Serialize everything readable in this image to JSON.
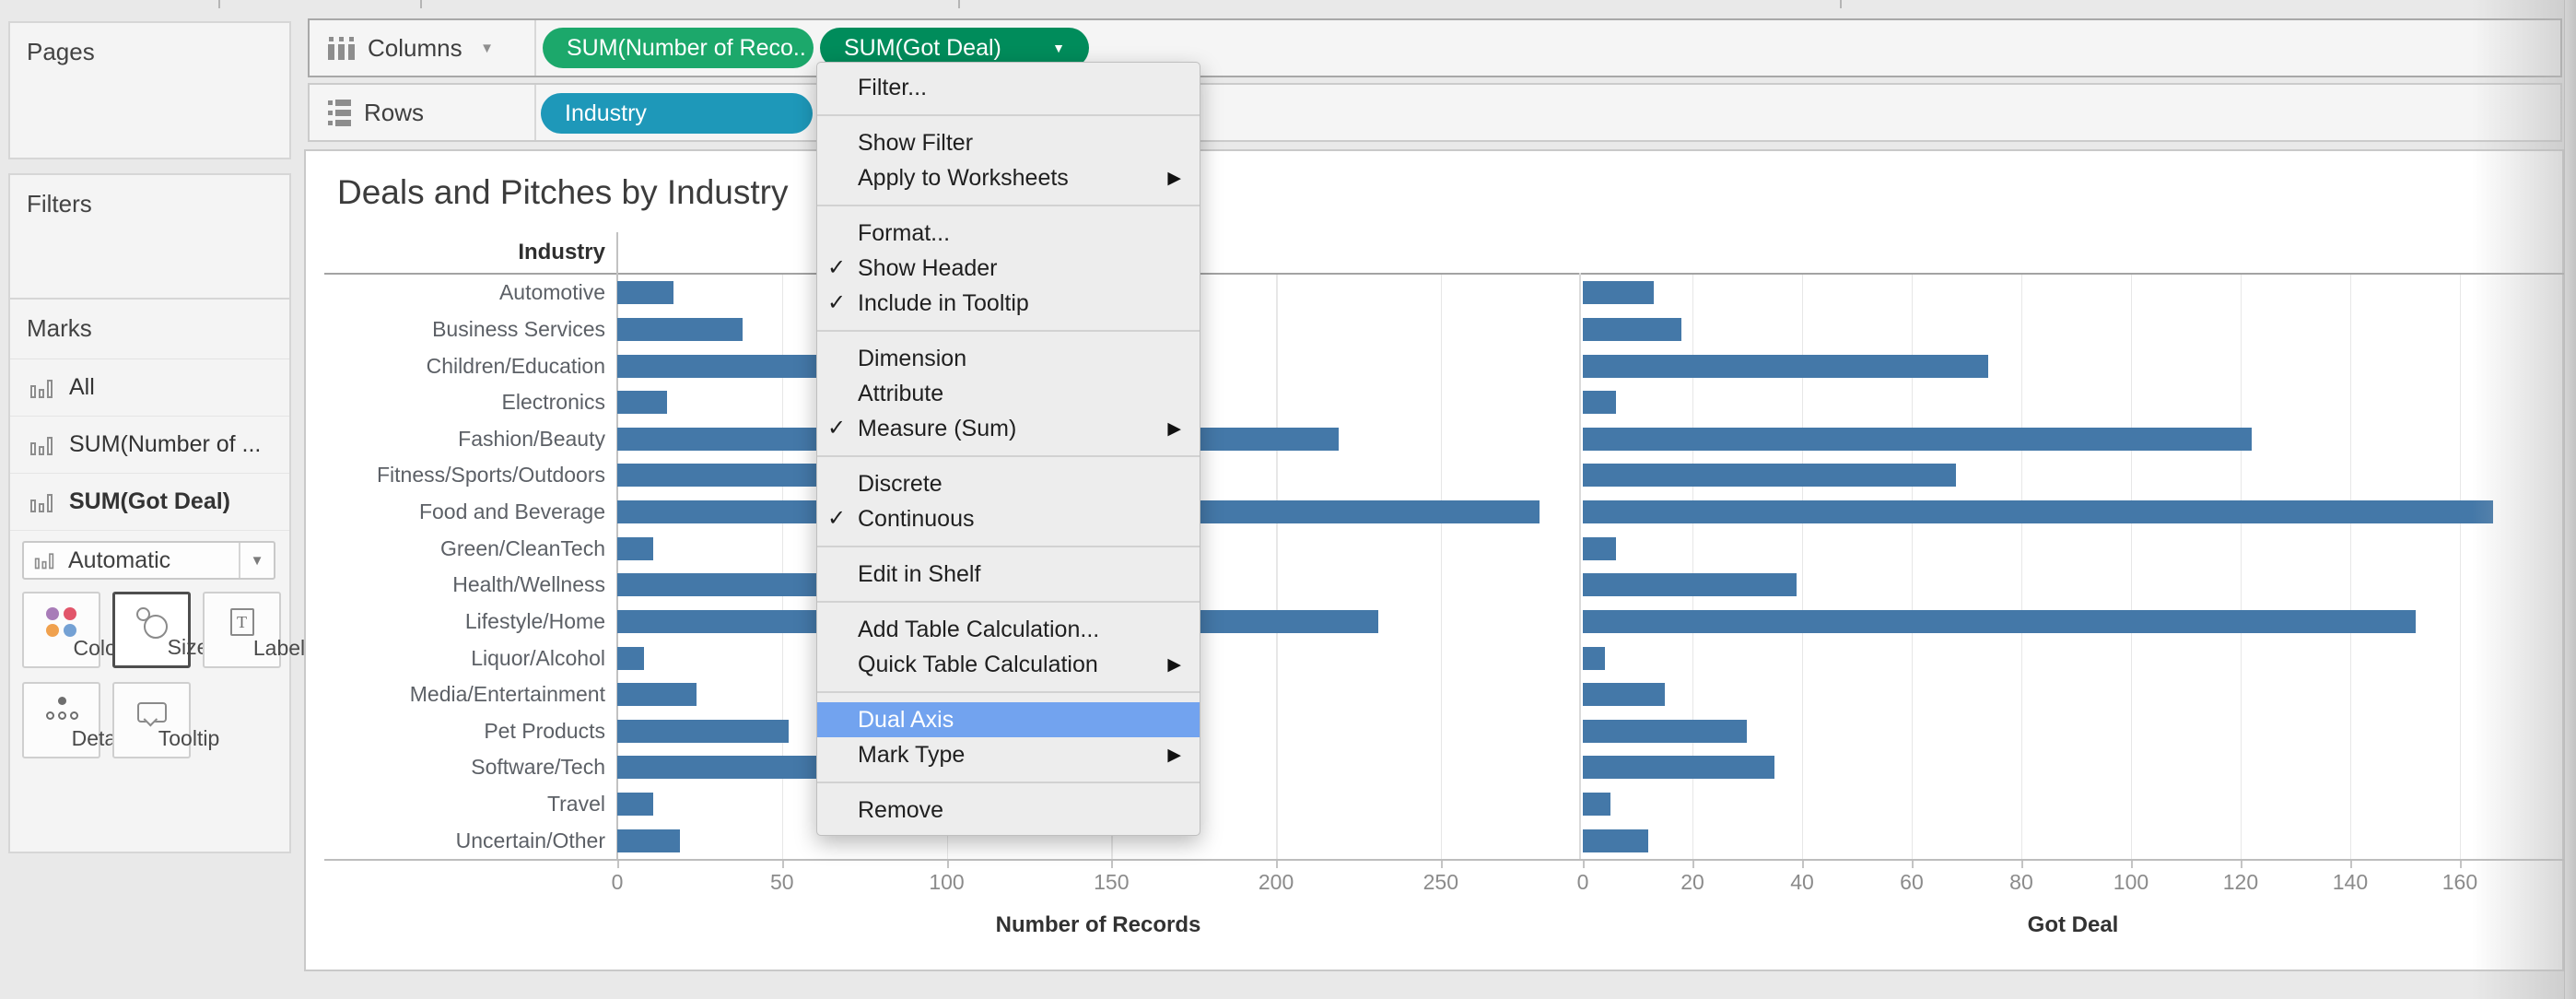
{
  "shelves": {
    "columns": {
      "label": "Columns",
      "pills": [
        {
          "label": "SUM(Number of Reco..",
          "color": "#1CA86B"
        },
        {
          "label": "SUM(Got Deal)",
          "color": "#008C5B",
          "caret": "▼"
        }
      ]
    },
    "rows": {
      "label": "Rows",
      "pills": [
        {
          "label": "Industry",
          "color": "#1E98B9"
        }
      ]
    }
  },
  "sidebar": {
    "pages_label": "Pages",
    "filters_label": "Filters",
    "marks": {
      "title": "Marks",
      "items": [
        {
          "label": "All",
          "bold": false
        },
        {
          "label": "SUM(Number of ...",
          "bold": false
        },
        {
          "label": "SUM(Got Deal)",
          "bold": true
        }
      ],
      "mark_type_dropdown": "Automatic",
      "buttons": [
        "Color",
        "Size",
        "Label",
        "Detail",
        "Tooltip"
      ],
      "selected_button": "Size"
    }
  },
  "context_menu": {
    "highlight_color": "#72A3EF",
    "items": [
      {
        "label": "Filter..."
      },
      {
        "sep": true
      },
      {
        "label": "Show Filter"
      },
      {
        "label": "Apply to Worksheets",
        "submenu": true
      },
      {
        "sep": true
      },
      {
        "label": "Format..."
      },
      {
        "label": "Show Header",
        "checked": true
      },
      {
        "label": "Include in Tooltip",
        "checked": true
      },
      {
        "sep": true
      },
      {
        "label": "Dimension"
      },
      {
        "label": "Attribute"
      },
      {
        "label": "Measure (Sum)",
        "checked": true,
        "submenu": true
      },
      {
        "sep": true
      },
      {
        "label": "Discrete"
      },
      {
        "label": "Continuous",
        "checked": true
      },
      {
        "sep": true
      },
      {
        "label": "Edit in Shelf"
      },
      {
        "sep": true
      },
      {
        "label": "Add Table Calculation..."
      },
      {
        "label": "Quick Table Calculation",
        "submenu": true
      },
      {
        "sep": true
      },
      {
        "label": "Dual Axis",
        "highlighted": true
      },
      {
        "label": "Mark Type",
        "submenu": true
      },
      {
        "sep": true
      },
      {
        "label": "Remove"
      }
    ]
  },
  "chart_data": {
    "type": "bar",
    "orientation": "horizontal",
    "title": "Deals and Pitches by Industry",
    "row_header": "Industry",
    "grid": true,
    "bar_color": "#4478A8",
    "categories": [
      "Automotive",
      "Business Services",
      "Children/Education",
      "Electronics",
      "Fashion/Beauty",
      "Fitness/Sports/Outdoors",
      "Food and Beverage",
      "Green/CleanTech",
      "Health/Wellness",
      "Lifestyle/Home",
      "Liquor/Alcohol",
      "Media/Entertainment",
      "Pet Products",
      "Software/Tech",
      "Travel",
      "Uncertain/Other"
    ],
    "series": [
      {
        "name": "SUM(Number of Records)",
        "axis_title": "Number of Records",
        "ticks": [
          0,
          50,
          100,
          150,
          200,
          250
        ],
        "axis_max": 292,
        "values": [
          17,
          38,
          133,
          15,
          219,
          122,
          280,
          11,
          70,
          231,
          8,
          24,
          52,
          63,
          11,
          19
        ]
      },
      {
        "name": "SUM(Got Deal)",
        "axis_title": "Got Deal",
        "ticks": [
          0,
          20,
          40,
          60,
          80,
          100,
          120,
          140,
          160
        ],
        "axis_max": 179,
        "values": [
          13,
          18,
          74,
          6,
          122,
          68,
          166,
          6,
          39,
          152,
          4,
          15,
          30,
          35,
          5,
          12
        ]
      }
    ]
  }
}
